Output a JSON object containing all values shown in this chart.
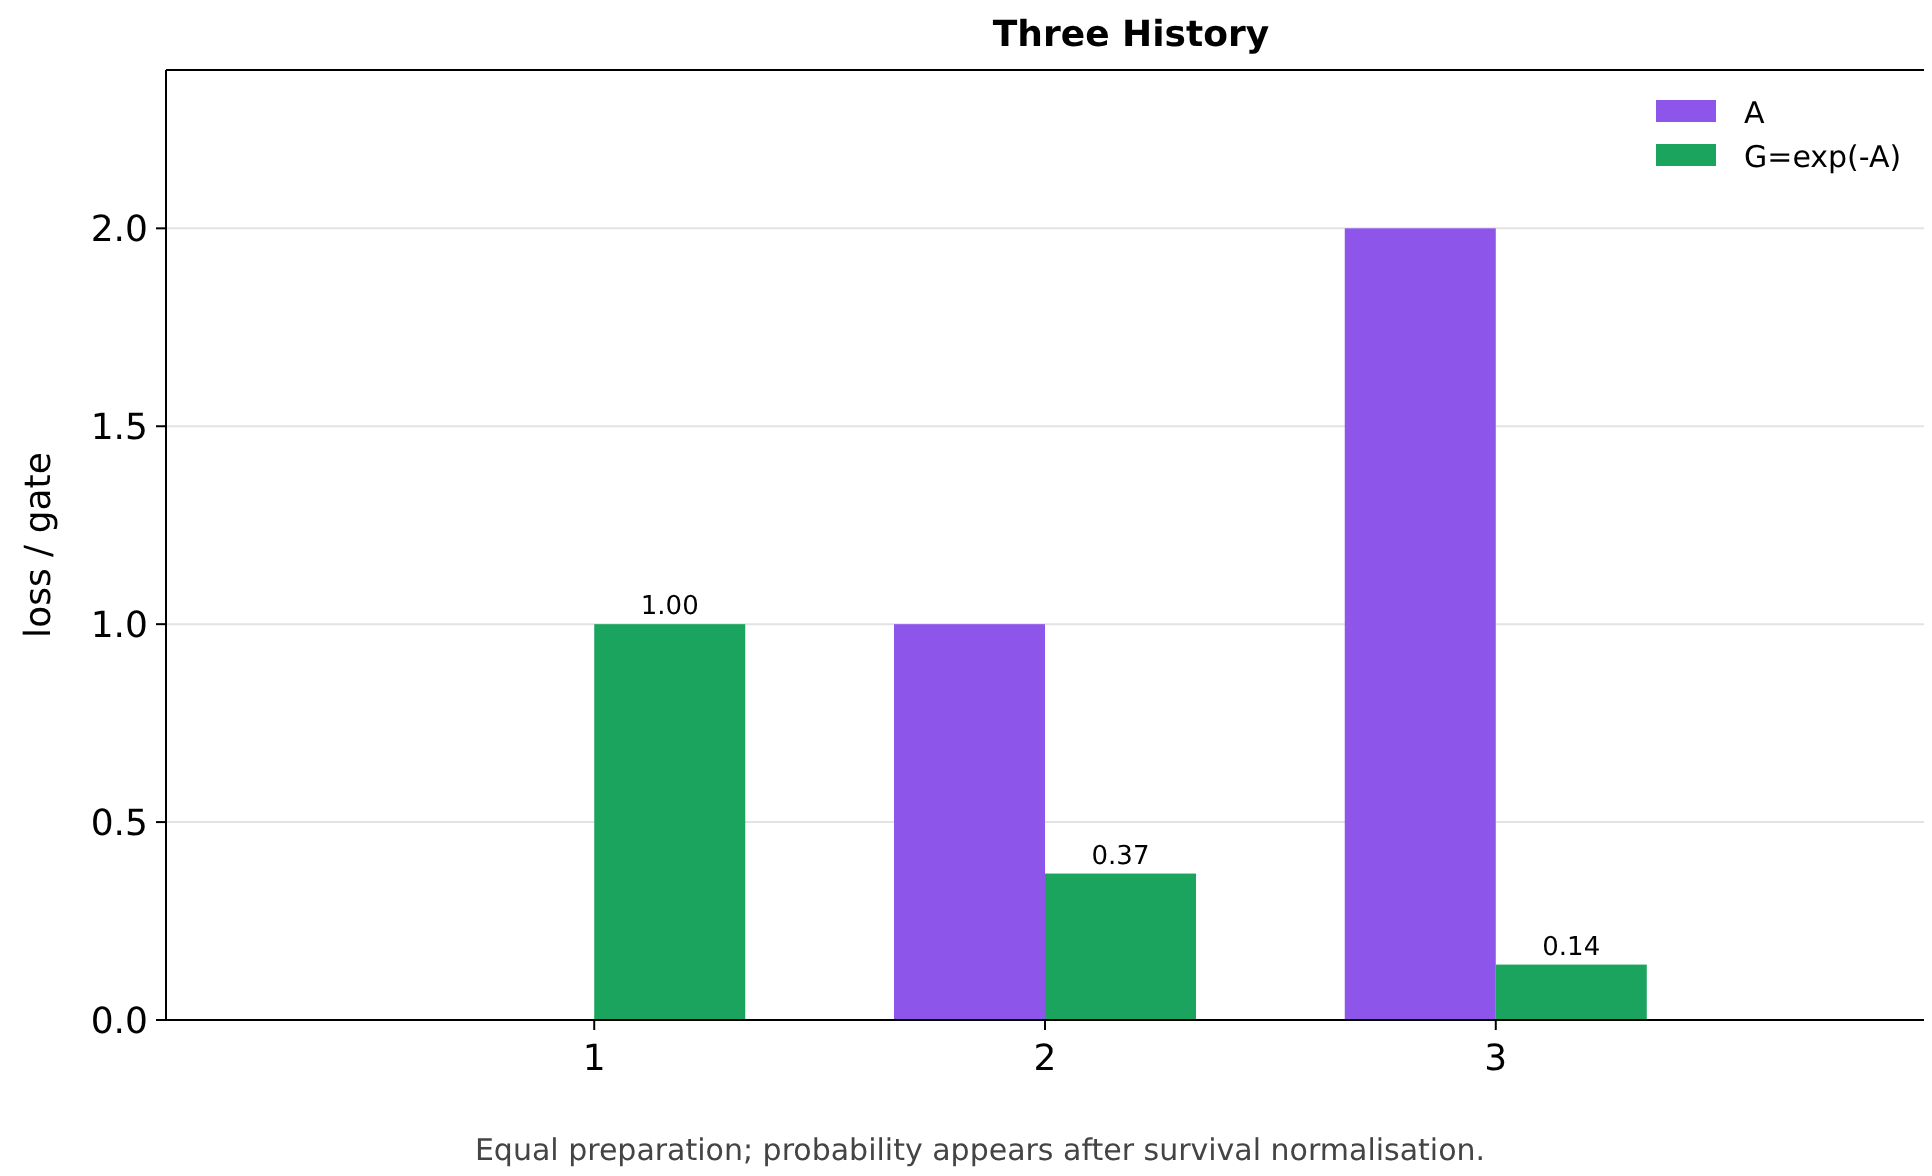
{
  "chart_data": {
    "type": "bar",
    "title": "Three History",
    "ylabel": "loss / gate",
    "categories": [
      "1",
      "2",
      "3"
    ],
    "series": [
      {
        "name": "A",
        "color": "#8e55ea",
        "values": [
          0,
          1,
          2
        ]
      },
      {
        "name": "G=exp(-A)",
        "color": "#1ba45e",
        "values": [
          1.0,
          0.37,
          0.14
        ],
        "value_labels": [
          "1.00",
          "0.37",
          "0.14"
        ]
      }
    ],
    "ylim": [
      0,
      2.4
    ],
    "yticks": [
      {
        "value": 0,
        "label": "0.0"
      },
      {
        "value": 0.5,
        "label": "0.5"
      },
      {
        "value": 1,
        "label": "1.0"
      },
      {
        "value": 1.5,
        "label": "1.5"
      },
      {
        "value": 2,
        "label": "2.0"
      }
    ],
    "grid": "y",
    "legend": "top right",
    "annotations": [
      "Equal preparation; probability appears after survival normalisation."
    ]
  }
}
